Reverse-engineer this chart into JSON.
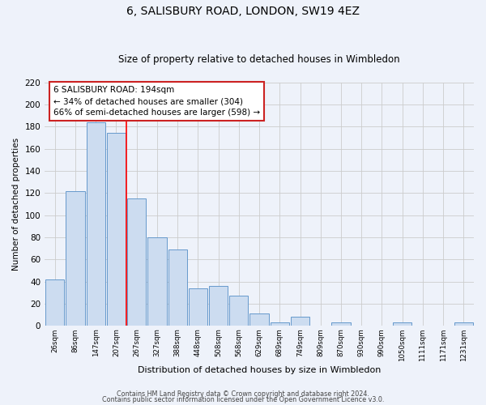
{
  "title": "6, SALISBURY ROAD, LONDON, SW19 4EZ",
  "subtitle": "Size of property relative to detached houses in Wimbledon",
  "xlabel": "Distribution of detached houses by size in Wimbledon",
  "ylabel": "Number of detached properties",
  "bar_labels": [
    "26sqm",
    "86sqm",
    "147sqm",
    "207sqm",
    "267sqm",
    "327sqm",
    "388sqm",
    "448sqm",
    "508sqm",
    "568sqm",
    "629sqm",
    "689sqm",
    "749sqm",
    "809sqm",
    "870sqm",
    "930sqm",
    "990sqm",
    "1050sqm",
    "1111sqm",
    "1171sqm",
    "1231sqm"
  ],
  "bar_values": [
    42,
    122,
    184,
    174,
    115,
    80,
    69,
    34,
    36,
    27,
    11,
    3,
    8,
    0,
    3,
    0,
    0,
    3,
    0,
    0,
    3
  ],
  "bar_facecolor": "#ccdcf0",
  "bar_edgecolor": "#6699cc",
  "vline_x": 3.5,
  "vline_color": "red",
  "ylim": [
    0,
    220
  ],
  "yticks": [
    0,
    20,
    40,
    60,
    80,
    100,
    120,
    140,
    160,
    180,
    200,
    220
  ],
  "annotation_title": "6 SALISBURY ROAD: 194sqm",
  "annotation_line1": "← 34% of detached houses are smaller (304)",
  "annotation_line2": "66% of semi-detached houses are larger (598) →",
  "footer1": "Contains HM Land Registry data © Crown copyright and database right 2024.",
  "footer2": "Contains public sector information licensed under the Open Government Licence v3.0.",
  "bg_color": "#eef2fa",
  "grid_color": "#cccccc",
  "ann_box_color": "#cc2222"
}
